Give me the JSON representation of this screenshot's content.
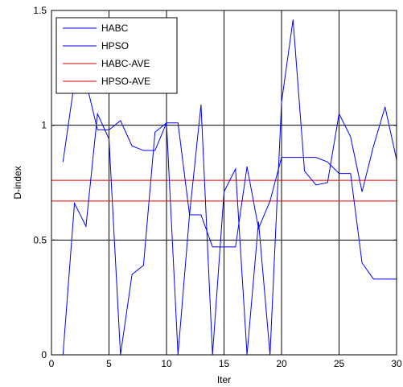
{
  "chart_data": {
    "type": "line",
    "title": "",
    "xlabel": "Iter",
    "ylabel": "D-index",
    "xlim": [
      0,
      30
    ],
    "ylim": [
      0,
      1.5
    ],
    "xticks": [
      0,
      5,
      10,
      15,
      20,
      25,
      30
    ],
    "yticks": [
      0,
      0.5,
      1,
      1.5
    ],
    "grid": "vertical",
    "legend_position": "top-left",
    "x": [
      1,
      2,
      3,
      4,
      5,
      6,
      7,
      8,
      9,
      10,
      11,
      12,
      13,
      14,
      15,
      16,
      17,
      18,
      19,
      20,
      21,
      22,
      23,
      24,
      25,
      26,
      27,
      28,
      29,
      30
    ],
    "series": [
      {
        "name": "HABC",
        "color": "#0000ff",
        "style": "line",
        "values": [
          0.84,
          1.19,
          1.19,
          0.98,
          0.98,
          1.02,
          0.91,
          0.89,
          0.89,
          1.01,
          1.01,
          0.61,
          0.61,
          0.47,
          0.47,
          0.47,
          0.82,
          0.55,
          0.67,
          0.86,
          0.86,
          0.86,
          0.86,
          0.84,
          0.79,
          0.79,
          0.4,
          0.33,
          0.33,
          0.33
        ]
      },
      {
        "name": "HPSO",
        "color": "#0000ff",
        "style": "line",
        "values": [
          0.0,
          0.66,
          0.56,
          1.05,
          0.94,
          0.0,
          0.35,
          0.39,
          0.97,
          1.01,
          0.0,
          0.61,
          1.09,
          0.0,
          0.71,
          0.81,
          0.0,
          0.58,
          0.0,
          1.1,
          1.46,
          0.8,
          0.74,
          0.75,
          1.05,
          0.95,
          0.71,
          0.91,
          1.08,
          0.85
        ]
      },
      {
        "name": "HABC-AVE",
        "color": "#dd0000",
        "style": "hline",
        "value": 0.76
      },
      {
        "name": "HPSO-AVE",
        "color": "#dd0000",
        "style": "hline",
        "value": 0.67
      }
    ]
  }
}
